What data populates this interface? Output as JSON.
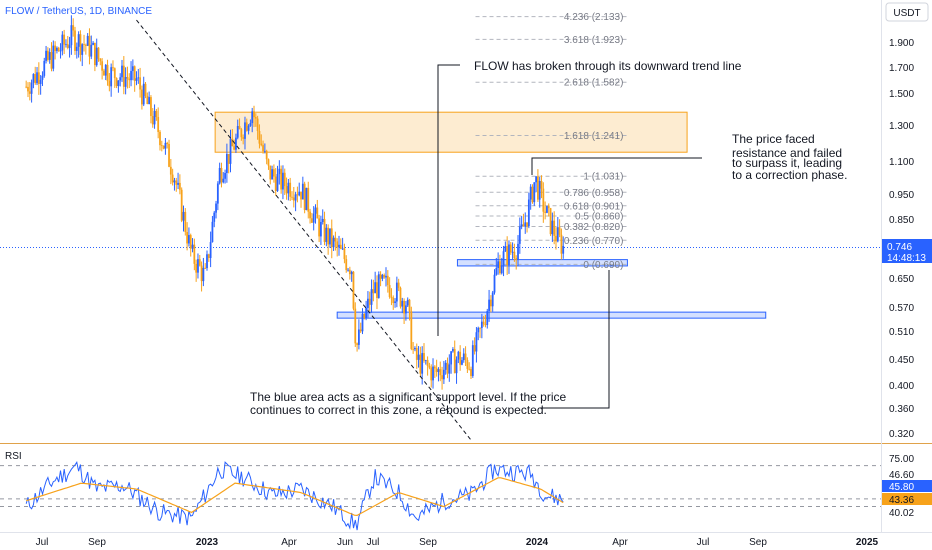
{
  "header": {
    "symbol_label": "FLOW / TetherUS, 1D, BINANCE"
  },
  "price_axis": {
    "currency": "USDT",
    "ticks": [
      "1.900",
      "1.700",
      "1.500",
      "1.300",
      "1.100",
      "0.950",
      "0.850",
      "0.746",
      "0.650",
      "0.570",
      "0.510",
      "0.450",
      "0.400",
      "0.360",
      "0.320"
    ],
    "current_price": "0.746",
    "countdown": "14:48:13"
  },
  "rsi": {
    "label": "RSI",
    "ticks": [
      "75.00",
      "46.60",
      "40.02"
    ],
    "rsi_value": "45.80",
    "ma_value": "43.36"
  },
  "time_axis": {
    "labels": [
      "Jul",
      "Sep",
      "2023",
      "Apr",
      "Jun",
      "Jul",
      "Sep",
      "2024",
      "Apr",
      "Jul",
      "Sep",
      "2025"
    ]
  },
  "fibonacci": {
    "levels": [
      {
        "label": "4.236 (2.133)"
      },
      {
        "label": "3.618 (1.923)"
      },
      {
        "label": "2.618 (1.582)"
      },
      {
        "label": "1.618 (1.241)"
      },
      {
        "label": "1 (1.031)"
      },
      {
        "label": "0.786 (0.958)"
      },
      {
        "label": "0.618 (0.901)"
      },
      {
        "label": "0.5 (0.860)"
      },
      {
        "label": "0.382 (0.820)"
      },
      {
        "label": "0.236 (0.770)"
      },
      {
        "label": "0 (0.690)"
      }
    ]
  },
  "annotations": {
    "trendline_break": "FLOW has broken through its downward trend line",
    "resistance_lines": [
      "The price faced",
      "resistance and failed",
      "to surpass it, leading",
      "to a correction phase."
    ],
    "support_lines": [
      "The blue area acts as a significant support level. If the price",
      "continues to correct in this zone, a rebound is expected."
    ]
  },
  "colors": {
    "candle_up": "#2962ff",
    "candle_down": "#f7a21b",
    "resistance_zone": "#f7a21b",
    "support_zone": "#2962ff",
    "rsi_line": "#2962ff",
    "rsi_ma": "#f7a21b",
    "price_badge": "#2962ff"
  },
  "chart_data": {
    "type": "candlestick",
    "symbol": "FLOW / TetherUS",
    "timeframe": "1D",
    "exchange": "BINANCE",
    "y_axis_scale": "log",
    "price_path": [
      {
        "date": "2022-06-15",
        "close": 1.55
      },
      {
        "date": "2022-07-10",
        "close": 1.75
      },
      {
        "date": "2022-08-05",
        "close": 1.95
      },
      {
        "date": "2022-08-25",
        "close": 1.85
      },
      {
        "date": "2022-09-15",
        "close": 1.65
      },
      {
        "date": "2022-10-15",
        "close": 1.6
      },
      {
        "date": "2022-11-10",
        "close": 1.25
      },
      {
        "date": "2022-11-25",
        "close": 1.05
      },
      {
        "date": "2022-12-15",
        "close": 0.72
      },
      {
        "date": "2022-12-30",
        "close": 0.65
      },
      {
        "date": "2023-01-15",
        "close": 1.05
      },
      {
        "date": "2023-02-01",
        "close": 1.2
      },
      {
        "date": "2023-02-20",
        "close": 1.4
      },
      {
        "date": "2023-03-10",
        "close": 1.05
      },
      {
        "date": "2023-03-25",
        "close": 1.0
      },
      {
        "date": "2023-04-15",
        "close": 0.97
      },
      {
        "date": "2023-05-05",
        "close": 0.82
      },
      {
        "date": "2023-05-25",
        "close": 0.74
      },
      {
        "date": "2023-06-10",
        "close": 0.68
      },
      {
        "date": "2023-06-15",
        "close": 0.47
      },
      {
        "date": "2023-06-25",
        "close": 0.55
      },
      {
        "date": "2023-07-05",
        "close": 0.62
      },
      {
        "date": "2023-07-20",
        "close": 0.63
      },
      {
        "date": "2023-08-10",
        "close": 0.58
      },
      {
        "date": "2023-08-18",
        "close": 0.45
      },
      {
        "date": "2023-09-10",
        "close": 0.42
      },
      {
        "date": "2023-10-05",
        "close": 0.45
      },
      {
        "date": "2023-10-20",
        "close": 0.44
      },
      {
        "date": "2023-11-05",
        "close": 0.55
      },
      {
        "date": "2023-11-20",
        "close": 0.7
      },
      {
        "date": "2023-12-10",
        "close": 0.75
      },
      {
        "date": "2023-12-20",
        "close": 0.85
      },
      {
        "date": "2023-12-30",
        "close": 1.02
      },
      {
        "date": "2024-01-10",
        "close": 0.88
      },
      {
        "date": "2024-01-20",
        "close": 0.8
      },
      {
        "date": "2024-01-30",
        "close": 0.746
      }
    ],
    "zones": [
      {
        "name": "resistance",
        "y_range": [
          1.15,
          1.38
        ],
        "x_range": [
          "2023-01-10",
          "2024-06-15"
        ]
      },
      {
        "name": "support",
        "y_range": [
          0.54,
          0.555
        ],
        "x_range": [
          "2023-05-25",
          "2024-09-10"
        ]
      },
      {
        "name": "support",
        "y_range": [
          0.685,
          0.705
        ],
        "x_range": [
          "2023-10-05",
          "2024-04-10"
        ]
      }
    ],
    "trendline": {
      "from": {
        "date": "2022-10-15",
        "price": 2.1
      },
      "to": {
        "date": "2023-10-20",
        "price": 0.31
      }
    },
    "rsi_scale": [
      20,
      90
    ],
    "rsi_series": [
      {
        "date": "2022-06-15",
        "rsi": 40
      },
      {
        "date": "2022-07-15",
        "rsi": 62
      },
      {
        "date": "2022-08-10",
        "rsi": 74
      },
      {
        "date": "2022-09-01",
        "rsi": 55
      },
      {
        "date": "2022-10-01",
        "rsi": 58
      },
      {
        "date": "2022-11-10",
        "rsi": 35
      },
      {
        "date": "2022-12-15",
        "rsi": 30
      },
      {
        "date": "2023-01-15",
        "rsi": 72
      },
      {
        "date": "2023-02-10",
        "rsi": 65
      },
      {
        "date": "2023-03-15",
        "rsi": 50
      },
      {
        "date": "2023-04-15",
        "rsi": 55
      },
      {
        "date": "2023-05-20",
        "rsi": 40
      },
      {
        "date": "2023-06-15",
        "rsi": 24
      },
      {
        "date": "2023-07-05",
        "rsi": 65
      },
      {
        "date": "2023-08-01",
        "rsi": 52
      },
      {
        "date": "2023-08-20",
        "rsi": 30
      },
      {
        "date": "2023-09-20",
        "rsi": 45
      },
      {
        "date": "2023-10-20",
        "rsi": 50
      },
      {
        "date": "2023-11-15",
        "rsi": 72
      },
      {
        "date": "2023-12-05",
        "rsi": 70
      },
      {
        "date": "2023-12-25",
        "rsi": 68
      },
      {
        "date": "2024-01-10",
        "rsi": 50
      },
      {
        "date": "2024-01-30",
        "rsi": 45.8
      }
    ],
    "rsi_ma_series": [
      {
        "date": "2022-06-15",
        "rsi_ma": 45
      },
      {
        "date": "2022-08-15",
        "rsi_ma": 60
      },
      {
        "date": "2022-10-15",
        "rsi_ma": 55
      },
      {
        "date": "2022-12-15",
        "rsi_ma": 35
      },
      {
        "date": "2023-02-01",
        "rsi_ma": 60
      },
      {
        "date": "2023-04-15",
        "rsi_ma": 52
      },
      {
        "date": "2023-06-15",
        "rsi_ma": 32
      },
      {
        "date": "2023-08-01",
        "rsi_ma": 52
      },
      {
        "date": "2023-09-20",
        "rsi_ma": 40
      },
      {
        "date": "2023-11-20",
        "rsi_ma": 65
      },
      {
        "date": "2024-01-05",
        "rsi_ma": 55
      },
      {
        "date": "2024-01-30",
        "rsi_ma": 43.36
      }
    ]
  }
}
